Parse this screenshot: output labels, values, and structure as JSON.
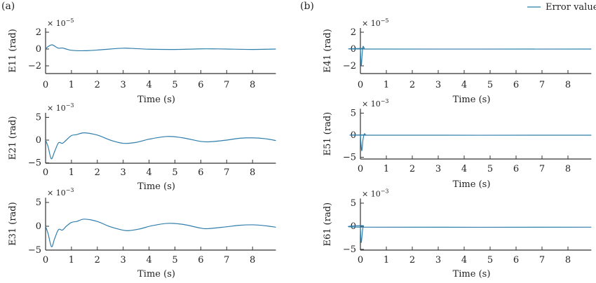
{
  "panel_labels": [
    "(a)",
    "(b)"
  ],
  "legend": {
    "label": "Error value",
    "color": "#2f7eab"
  },
  "chart_data": [
    {
      "type": "line",
      "panel": "a",
      "ylabel": "E11 (rad)",
      "xlabel": "Time (s)",
      "multiplier": "× 10",
      "exponent": "-5",
      "xlim": [
        0,
        8.9
      ],
      "ylim": [
        -3,
        2.5
      ],
      "xticks": [
        0,
        1,
        2,
        3,
        4,
        5,
        6,
        7,
        8
      ],
      "yticks": [
        -2,
        0,
        2
      ],
      "x": [
        0,
        0.1,
        0.25,
        0.4,
        0.5,
        0.65,
        0.8,
        1.0,
        1.5,
        2,
        2.5,
        3,
        3.3,
        4,
        5,
        6,
        6.5,
        7,
        8,
        8.9
      ],
      "y": [
        0,
        0.3,
        0.5,
        0.25,
        0.1,
        0.12,
        0,
        -0.15,
        -0.2,
        -0.12,
        0,
        0.1,
        0.08,
        -0.02,
        -0.05,
        0.02,
        0.02,
        0,
        -0.05,
        0
      ]
    },
    {
      "type": "line",
      "panel": "a",
      "ylabel": "E21 (rad)",
      "xlabel": "Time (s)",
      "multiplier": "× 10",
      "exponent": "-3",
      "xlim": [
        0,
        8.9
      ],
      "ylim": [
        -5,
        6
      ],
      "xticks": [
        0,
        1,
        2,
        3,
        4,
        5,
        6,
        7,
        8
      ],
      "yticks": [
        -5,
        0,
        5
      ],
      "x": [
        0,
        0.1,
        0.22,
        0.35,
        0.5,
        0.65,
        0.8,
        1.0,
        1.2,
        1.5,
        2,
        2.5,
        3,
        3.5,
        4,
        4.7,
        5.3,
        6,
        6.4,
        7,
        7.5,
        8,
        8.5,
        8.9
      ],
      "y": [
        0,
        -1.5,
        -4.1,
        -2.5,
        -0.6,
        -0.7,
        0,
        1.0,
        1.2,
        1.6,
        1.1,
        0,
        -0.7,
        -0.5,
        0.2,
        0.8,
        0.5,
        -0.3,
        -0.35,
        0,
        0.4,
        0.5,
        0.3,
        -0.1
      ]
    },
    {
      "type": "line",
      "panel": "a",
      "ylabel": "E31 (rad)",
      "xlabel": "Time (s)",
      "multiplier": "× 10",
      "exponent": "-3",
      "xlim": [
        0,
        8.9
      ],
      "ylim": [
        -5,
        6
      ],
      "xticks": [
        0,
        1,
        2,
        3,
        4,
        5,
        6,
        7,
        8
      ],
      "yticks": [
        -5,
        0,
        5
      ],
      "x": [
        0,
        0.1,
        0.23,
        0.35,
        0.5,
        0.65,
        0.8,
        1.0,
        1.2,
        1.5,
        2,
        2.5,
        3.1,
        3.6,
        4.1,
        4.7,
        5.3,
        6,
        6.3,
        7,
        7.5,
        8,
        8.5,
        8.9
      ],
      "y": [
        0,
        -1.6,
        -4.3,
        -2.6,
        -0.7,
        -0.8,
        0,
        0.8,
        1.0,
        1.5,
        1.0,
        -0.1,
        -0.9,
        -0.6,
        0.1,
        0.6,
        0.4,
        -0.4,
        -0.5,
        -0.1,
        0.2,
        0.3,
        0.1,
        -0.2
      ]
    },
    {
      "type": "line",
      "panel": "b",
      "ylabel": "E41 (rad)",
      "xlabel": "Time (s)",
      "multiplier": "× 10",
      "exponent": "-5",
      "xlim": [
        0,
        8.9
      ],
      "ylim": [
        -3,
        2.5
      ],
      "xticks": [
        0,
        1,
        2,
        3,
        4,
        5,
        6,
        7,
        8
      ],
      "yticks": [
        -2,
        0,
        2
      ],
      "x": [
        0,
        0.03,
        0.07,
        0.1,
        0.15,
        0.2,
        8.9
      ],
      "y": [
        0,
        -2,
        -0.5,
        0.3,
        0.1,
        0,
        0
      ]
    },
    {
      "type": "line",
      "panel": "b",
      "ylabel": "E51 (rad)",
      "xlabel": "Time (s)",
      "multiplier": "× 10",
      "exponent": "-3",
      "xlim": [
        0,
        8.9
      ],
      "ylim": [
        -5,
        6
      ],
      "xticks": [
        0,
        1,
        2,
        3,
        4,
        5,
        6,
        7,
        8
      ],
      "yticks": [
        -5,
        0,
        5
      ],
      "x": [
        0,
        0.05,
        0.1,
        0.15,
        0.2,
        0.25,
        8.9
      ],
      "y": [
        0,
        -3.5,
        -1,
        0.3,
        0.1,
        0,
        0
      ]
    },
    {
      "type": "line",
      "panel": "b",
      "ylabel": "E61 (rad)",
      "xlabel": "Time (s)",
      "multiplier": "× 10",
      "exponent": "-3",
      "xlim": [
        0,
        8.9
      ],
      "ylim": [
        -5,
        6
      ],
      "xticks": [
        0,
        1,
        2,
        3,
        4,
        5,
        6,
        7,
        8
      ],
      "yticks": [
        -5,
        0,
        5
      ],
      "x": [
        0,
        0.03,
        0.08,
        0.12,
        0.2,
        8.9
      ],
      "y": [
        -0.2,
        -3.5,
        -1,
        0.1,
        -0.2,
        -0.2
      ]
    }
  ]
}
